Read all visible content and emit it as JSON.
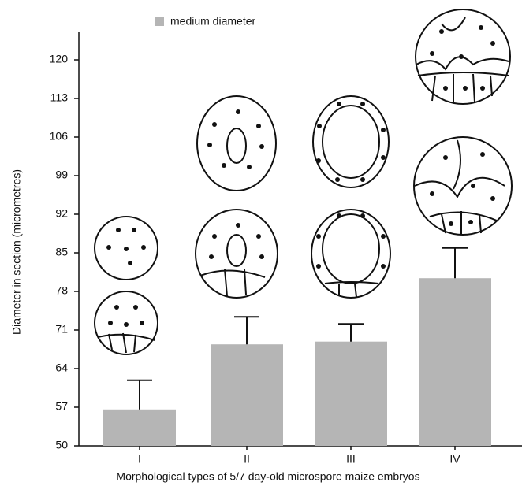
{
  "chart_data": {
    "type": "bar",
    "x_label": "Morphological types of 5/7 day-old microspore maize embryos",
    "y_label": "Diameter in section (micrometres)",
    "categories": [
      "I",
      "II",
      "III",
      "IV"
    ],
    "series": [
      {
        "name": "medium diameter",
        "color": "#b5b5b5",
        "values": [
          56.6,
          68.4,
          68.9,
          80.4
        ],
        "errors": [
          5.3,
          5.0,
          3.2,
          5.5
        ]
      }
    ],
    "ylim": [
      50,
      125
    ],
    "yticks": [
      50,
      57,
      64,
      71,
      78,
      85,
      92,
      99,
      106,
      113,
      120
    ],
    "legend": "top"
  }
}
